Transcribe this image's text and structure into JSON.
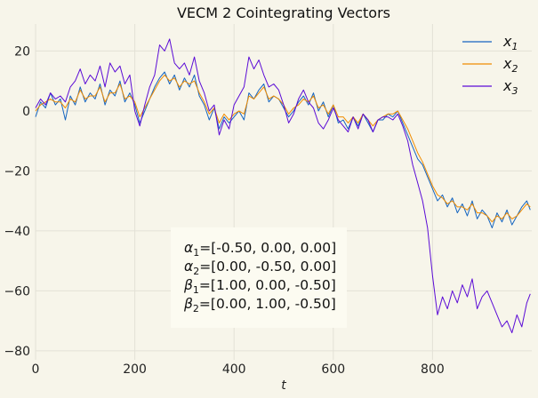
{
  "chart_data": {
    "type": "line",
    "title": "VECM 2 Cointegrating Vectors",
    "xlabel": "t",
    "ylabel": "",
    "xlim": [
      0,
      1000
    ],
    "ylim": [
      -83,
      29
    ],
    "xticks": [
      0,
      200,
      400,
      600,
      800
    ],
    "yticks": [
      20,
      0,
      -20,
      -40,
      -60,
      -80
    ],
    "grid": true,
    "legend_position": "top-right",
    "series": [
      {
        "name": "x1",
        "label_base": "x",
        "label_sub": "1",
        "color": "#1565c0",
        "x": [
          0,
          10,
          20,
          30,
          40,
          50,
          60,
          70,
          80,
          90,
          100,
          110,
          120,
          130,
          140,
          150,
          160,
          170,
          180,
          190,
          200,
          210,
          220,
          230,
          240,
          250,
          260,
          270,
          280,
          290,
          300,
          310,
          320,
          330,
          340,
          350,
          360,
          370,
          380,
          390,
          400,
          410,
          420,
          430,
          440,
          450,
          460,
          470,
          480,
          490,
          500,
          510,
          520,
          530,
          540,
          550,
          560,
          570,
          580,
          590,
          600,
          610,
          620,
          630,
          640,
          650,
          660,
          670,
          680,
          690,
          700,
          710,
          720,
          730,
          740,
          750,
          760,
          770,
          780,
          790,
          800,
          810,
          820,
          830,
          840,
          850,
          860,
          870,
          880,
          890,
          900,
          910,
          920,
          930,
          940,
          950,
          960,
          970,
          980,
          990,
          997
        ],
        "y": [
          -2,
          3,
          1,
          6,
          2,
          4,
          -3,
          5,
          2,
          8,
          3,
          6,
          4,
          9,
          2,
          7,
          5,
          10,
          3,
          6,
          2,
          -4,
          0,
          4,
          8,
          11,
          13,
          9,
          12,
          7,
          11,
          8,
          12,
          5,
          2,
          -3,
          1,
          -6,
          -2,
          -4,
          -2,
          0,
          -3,
          6,
          4,
          7,
          9,
          3,
          5,
          4,
          1,
          -2,
          0,
          3,
          5,
          2,
          6,
          0,
          3,
          -2,
          2,
          -4,
          -3,
          -6,
          -2,
          -5,
          -1,
          -4,
          -7,
          -3,
          -3,
          -1,
          -2,
          0,
          -4,
          -8,
          -12,
          -16,
          -18,
          -22,
          -26,
          -30,
          -28,
          -32,
          -29,
          -34,
          -31,
          -35,
          -30,
          -36,
          -33,
          -35,
          -39,
          -34,
          -37,
          -33,
          -38,
          -35,
          -32,
          -30,
          -33
        ]
      },
      {
        "name": "x2",
        "label_base": "x",
        "label_sub": "2",
        "color": "#f08c00",
        "x": [
          0,
          10,
          20,
          30,
          40,
          50,
          60,
          70,
          80,
          90,
          100,
          110,
          120,
          130,
          140,
          150,
          160,
          170,
          180,
          190,
          200,
          210,
          220,
          230,
          240,
          250,
          260,
          270,
          280,
          290,
          300,
          310,
          320,
          330,
          340,
          350,
          360,
          370,
          380,
          390,
          400,
          410,
          420,
          430,
          440,
          450,
          460,
          470,
          480,
          490,
          500,
          510,
          520,
          530,
          540,
          550,
          560,
          570,
          580,
          590,
          600,
          610,
          620,
          630,
          640,
          650,
          660,
          670,
          680,
          690,
          700,
          710,
          720,
          730,
          740,
          750,
          760,
          770,
          780,
          790,
          800,
          810,
          820,
          830,
          840,
          850,
          860,
          870,
          880,
          890,
          900,
          910,
          920,
          930,
          940,
          950,
          960,
          970,
          980,
          990,
          997
        ],
        "y": [
          0,
          2,
          3,
          4,
          3,
          3,
          1,
          4,
          3,
          7,
          4,
          5,
          5,
          8,
          3,
          6,
          6,
          9,
          4,
          5,
          3,
          -2,
          1,
          4,
          7,
          10,
          12,
          10,
          11,
          8,
          10,
          9,
          10,
          6,
          3,
          -1,
          1,
          -4,
          -1,
          -3,
          -1,
          0,
          -1,
          5,
          4,
          6,
          8,
          4,
          5,
          4,
          2,
          -1,
          1,
          2,
          4,
          3,
          5,
          1,
          2,
          -1,
          2,
          -2,
          -2,
          -4,
          -2,
          -4,
          -1,
          -3,
          -5,
          -3,
          -2,
          -1,
          -1,
          0,
          -3,
          -6,
          -10,
          -14,
          -17,
          -21,
          -25,
          -28,
          -29,
          -31,
          -30,
          -32,
          -32,
          -33,
          -31,
          -34,
          -34,
          -35,
          -37,
          -35,
          -36,
          -34,
          -36,
          -35,
          -33,
          -31,
          -32
        ]
      },
      {
        "name": "x3",
        "label_base": "x",
        "label_sub": "3",
        "color": "#5b0bd6",
        "x": [
          0,
          10,
          20,
          30,
          40,
          50,
          60,
          70,
          80,
          90,
          100,
          110,
          120,
          130,
          140,
          150,
          160,
          170,
          180,
          190,
          200,
          210,
          220,
          230,
          240,
          250,
          260,
          270,
          280,
          290,
          300,
          310,
          320,
          330,
          340,
          350,
          360,
          370,
          380,
          390,
          400,
          410,
          420,
          430,
          440,
          450,
          460,
          470,
          480,
          490,
          500,
          510,
          520,
          530,
          540,
          550,
          560,
          570,
          580,
          590,
          600,
          610,
          620,
          630,
          640,
          650,
          660,
          670,
          680,
          690,
          700,
          710,
          720,
          730,
          740,
          750,
          760,
          770,
          780,
          790,
          800,
          810,
          820,
          830,
          840,
          850,
          860,
          870,
          880,
          890,
          900,
          910,
          920,
          930,
          940,
          950,
          960,
          970,
          980,
          990,
          997
        ],
        "y": [
          1,
          4,
          2,
          6,
          4,
          5,
          3,
          8,
          10,
          14,
          9,
          12,
          10,
          15,
          8,
          16,
          13,
          15,
          9,
          12,
          0,
          -5,
          2,
          8,
          12,
          22,
          20,
          24,
          16,
          14,
          16,
          12,
          18,
          10,
          6,
          0,
          2,
          -8,
          -3,
          -6,
          2,
          5,
          8,
          18,
          14,
          17,
          12,
          8,
          9,
          7,
          2,
          -4,
          -1,
          4,
          7,
          3,
          1,
          -4,
          -6,
          -3,
          1,
          -3,
          -5,
          -7,
          -2,
          -6,
          -1,
          -3,
          -7,
          -3,
          -2,
          -2,
          -3,
          -1,
          -5,
          -10,
          -18,
          -24,
          -30,
          -39,
          -55,
          -68,
          -62,
          -66,
          -60,
          -64,
          -58,
          -62,
          -56,
          -66,
          -62,
          -60,
          -64,
          -68,
          -72,
          -70,
          -74,
          -68,
          -72,
          -64,
          -61
        ]
      }
    ],
    "annotation_lines": [
      {
        "sym": "α",
        "sub": "1",
        "text": "=[-0.50, 0.00, 0.00]"
      },
      {
        "sym": "α",
        "sub": "2",
        "text": "=[0.00, -0.50, 0.00]"
      },
      {
        "sym": "β",
        "sub": "1",
        "text": "=[1.00, 0.00, -0.50]"
      },
      {
        "sym": "β",
        "sub": "2",
        "text": "=[0.00, 1.00, -0.50]"
      }
    ]
  },
  "colors": {
    "background": "#f7f5ea",
    "grid": "#e3e1d6",
    "annotation_box": "#fcfbf1"
  }
}
